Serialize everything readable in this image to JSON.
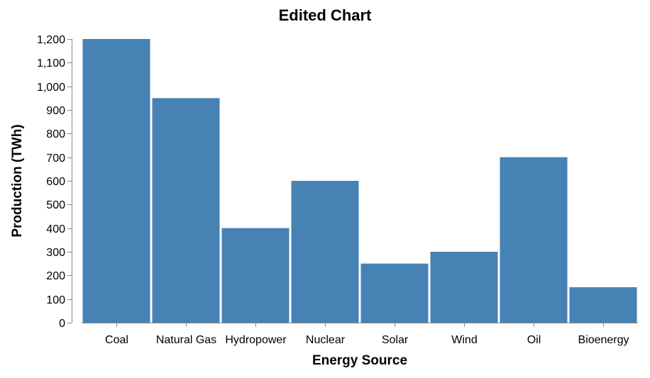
{
  "chart_data": {
    "type": "bar",
    "title": "Edited Chart",
    "xlabel": "Energy Source",
    "ylabel": "Production (TWh)",
    "categories": [
      "Coal",
      "Natural Gas",
      "Hydropower",
      "Nuclear",
      "Solar",
      "Wind",
      "Oil",
      "Bioenergy"
    ],
    "values": [
      1200,
      950,
      400,
      600,
      250,
      300,
      700,
      150
    ],
    "ylim": [
      0,
      1200
    ],
    "yticks": [
      0,
      100,
      200,
      300,
      400,
      500,
      600,
      700,
      800,
      900,
      1000,
      1100,
      1200
    ],
    "ytick_labels": [
      "0",
      "100",
      "200",
      "300",
      "400",
      "500",
      "600",
      "700",
      "800",
      "900",
      "1,000",
      "1,100",
      "1,200"
    ],
    "grid": false,
    "bar_color": "#4682b4",
    "axis_color": "#888888"
  }
}
